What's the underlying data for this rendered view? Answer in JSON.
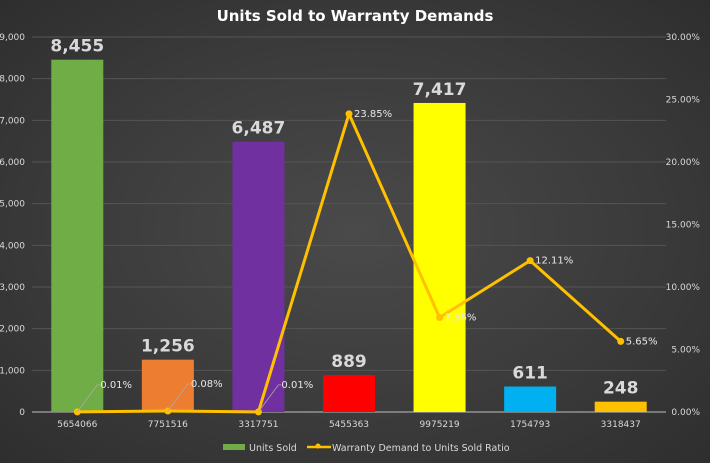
{
  "chart_data": {
    "type": "bar+line",
    "title": "Units Sold to Warranty Demands",
    "categories": [
      "5654066",
      "7751516",
      "3317751",
      "5455363",
      "9975219",
      "1754793",
      "3318437"
    ],
    "series": [
      {
        "name": "Units Sold",
        "type": "bar",
        "axis": "left",
        "values": [
          8455,
          1256,
          6487,
          889,
          7417,
          611,
          248
        ],
        "labels": [
          "8,455",
          "1,256",
          "6,487",
          "889",
          "7,417",
          "611",
          "248"
        ],
        "colors": [
          "#70ad47",
          "#ed7d31",
          "#7030a0",
          "#ff0000",
          "#ffff00",
          "#00b0f0",
          "#ffc000"
        ]
      },
      {
        "name": "Warranty Demand to Units Sold Ratio",
        "type": "line",
        "axis": "right",
        "values": [
          0.01,
          0.08,
          0.01,
          23.85,
          7.56,
          12.11,
          5.65
        ],
        "labels": [
          "0.01%",
          "0.08%",
          "0.01%",
          "23.85%",
          "7.56%",
          "12.11%",
          "5.65%"
        ],
        "color": "#ffc000"
      }
    ],
    "left_axis": {
      "ylim": [
        0,
        9000
      ],
      "ticks": [
        "0",
        "1,000",
        "2,000",
        "3,000",
        "4,000",
        "5,000",
        "6,000",
        "7,000",
        "8,000",
        "9,000"
      ]
    },
    "right_axis": {
      "ylim": [
        0,
        30
      ],
      "ticks": [
        "0.00%",
        "5.00%",
        "10.00%",
        "15.00%",
        "20.00%",
        "25.00%",
        "30.00%"
      ]
    },
    "grid": true,
    "legend": "bottom",
    "legend_colors": {
      "Units Sold": "#70ad47"
    }
  }
}
